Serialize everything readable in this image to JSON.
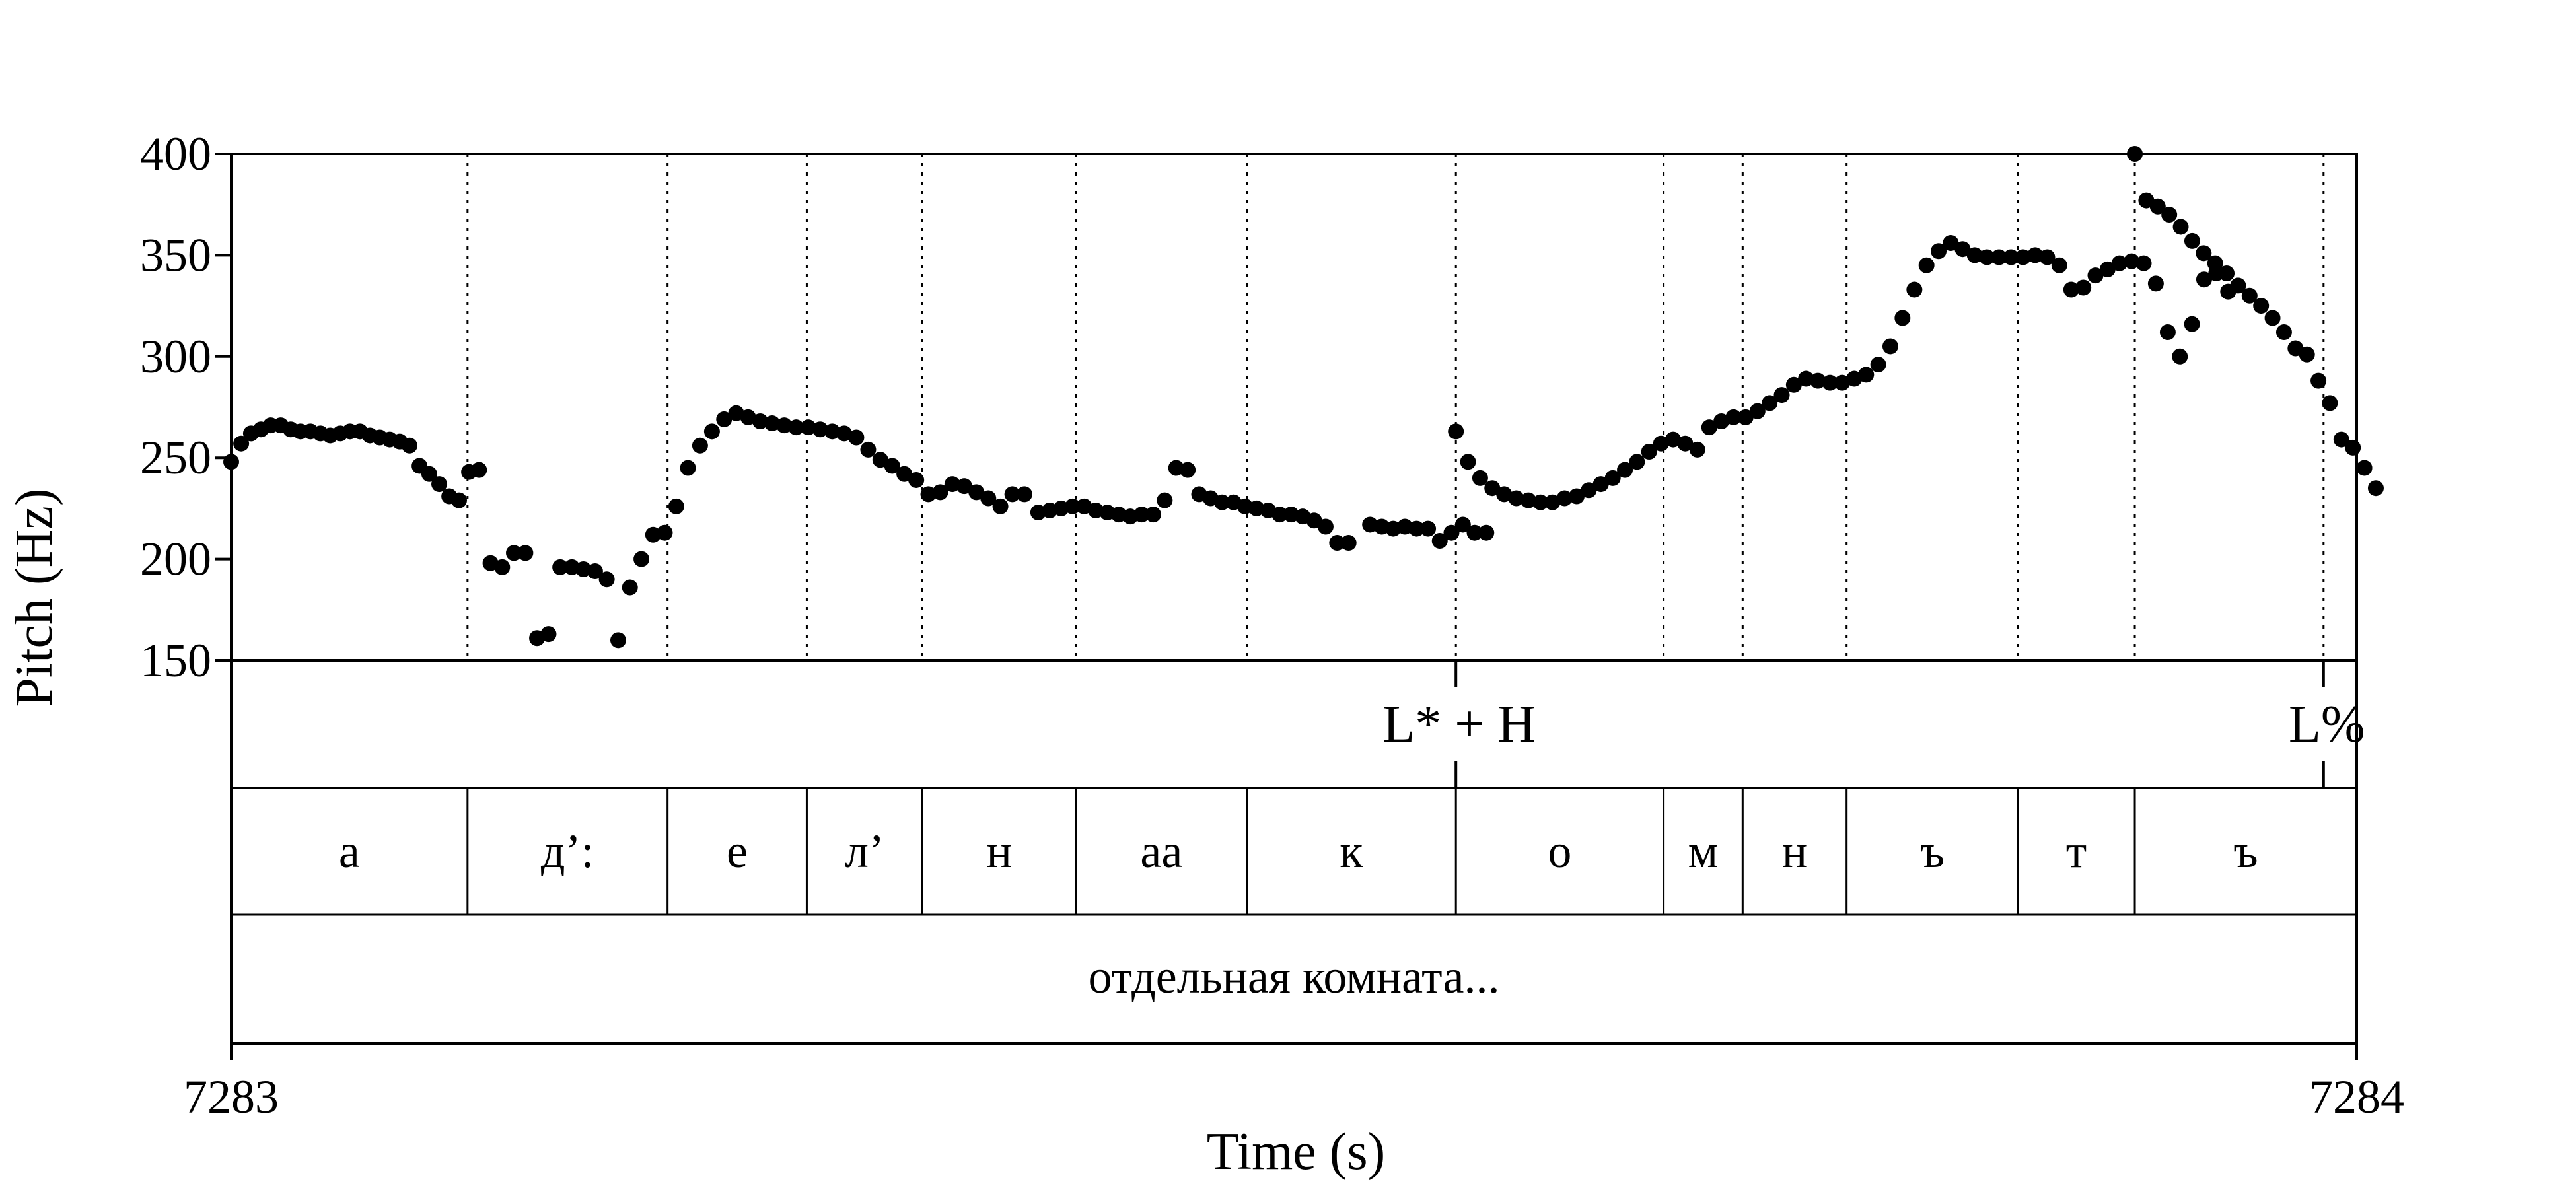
{
  "chart_data": {
    "type": "scatter",
    "title": "",
    "xlabel": "Time (s)",
    "ylabel": "Pitch (Hz)",
    "xlim": [
      7283,
      7284
    ],
    "ylim": [
      150,
      400
    ],
    "x_tick_labels": [
      "7283",
      "7284"
    ],
    "y_ticks": [
      150,
      200,
      250,
      300,
      350,
      400
    ],
    "y_tick_labels": [
      "150",
      "200",
      "250",
      "300",
      "350",
      "400"
    ],
    "grid": false,
    "segment_boundaries": [
      7283.1112,
      7283.2053,
      7283.2708,
      7283.3252,
      7283.3975,
      7283.4778,
      7283.5762,
      7283.6739,
      7283.7111,
      7283.76,
      7283.8406,
      7283.8956,
      7283.9844
    ],
    "tones": [
      {
        "label": "L* + H",
        "time": 7283.5762
      },
      {
        "label": "L%",
        "time": 7283.9844
      }
    ],
    "segments": [
      {
        "label": "а",
        "start": 7283.0,
        "end": 7283.1112
      },
      {
        "label": "д’:",
        "start": 7283.1112,
        "end": 7283.2053
      },
      {
        "label": "е",
        "start": 7283.2053,
        "end": 7283.2708
      },
      {
        "label": "л’",
        "start": 7283.2708,
        "end": 7283.3252
      },
      {
        "label": "н",
        "start": 7283.3252,
        "end": 7283.3975
      },
      {
        "label": "аа",
        "start": 7283.3975,
        "end": 7283.4778
      },
      {
        "label": "к",
        "start": 7283.4778,
        "end": 7283.5762
      },
      {
        "label": "о",
        "start": 7283.5762,
        "end": 7283.6739
      },
      {
        "label": "м",
        "start": 7283.6739,
        "end": 7283.7111
      },
      {
        "label": "н",
        "start": 7283.7111,
        "end": 7283.76
      },
      {
        "label": "ъ",
        "start": 7283.76,
        "end": 7283.8406
      },
      {
        "label": "т",
        "start": 7283.8406,
        "end": 7283.8956
      },
      {
        "label": "ъ",
        "start": 7283.8956,
        "end": 7284.0
      }
    ],
    "words": [
      {
        "label": "отдельная комната...",
        "start": 7283.0,
        "end": 7284.0
      }
    ],
    "points": [
      [
        7283.0,
        248
      ],
      [
        7283.0047,
        257
      ],
      [
        7283.0093,
        262
      ],
      [
        7283.014,
        264
      ],
      [
        7283.0186,
        266
      ],
      [
        7283.0233,
        266
      ],
      [
        7283.028,
        264
      ],
      [
        7283.0326,
        263
      ],
      [
        7283.0373,
        263
      ],
      [
        7283.042,
        262
      ],
      [
        7283.0466,
        261
      ],
      [
        7283.0513,
        262
      ],
      [
        7283.0559,
        263
      ],
      [
        7283.0606,
        263
      ],
      [
        7283.0653,
        261
      ],
      [
        7283.0699,
        260
      ],
      [
        7283.0746,
        259
      ],
      [
        7283.0793,
        258
      ],
      [
        7283.0839,
        256
      ],
      [
        7283.0886,
        246
      ],
      [
        7283.0932,
        242
      ],
      [
        7283.0979,
        237
      ],
      [
        7283.1026,
        231
      ],
      [
        7283.1072,
        229
      ],
      [
        7283.1119,
        243
      ],
      [
        7283.1166,
        244
      ],
      [
        7283.122,
        198
      ],
      [
        7283.1275,
        196
      ],
      [
        7283.133,
        203
      ],
      [
        7283.1384,
        203
      ],
      [
        7283.1439,
        161
      ],
      [
        7283.1493,
        163
      ],
      [
        7283.1548,
        196
      ],
      [
        7283.1603,
        196
      ],
      [
        7283.1657,
        195
      ],
      [
        7283.1712,
        194
      ],
      [
        7283.1767,
        190
      ],
      [
        7283.1821,
        160
      ],
      [
        7283.1876,
        186
      ],
      [
        7283.193,
        200
      ],
      [
        7283.1985,
        212
      ],
      [
        7283.204,
        213
      ],
      [
        7283.2094,
        226
      ],
      [
        7283.2149,
        245
      ],
      [
        7283.2206,
        256
      ],
      [
        7283.2262,
        263
      ],
      [
        7283.2319,
        269
      ],
      [
        7283.2376,
        272
      ],
      [
        7283.2432,
        270
      ],
      [
        7283.2489,
        268
      ],
      [
        7283.2545,
        267
      ],
      [
        7283.2602,
        266
      ],
      [
        7283.2658,
        265
      ],
      [
        7283.2715,
        265
      ],
      [
        7283.2771,
        264
      ],
      [
        7283.2828,
        263
      ],
      [
        7283.2884,
        262
      ],
      [
        7283.2941,
        260
      ],
      [
        7283.2997,
        254
      ],
      [
        7283.3054,
        249
      ],
      [
        7283.311,
        246
      ],
      [
        7283.3167,
        242
      ],
      [
        7283.3223,
        239
      ],
      [
        7283.328,
        232
      ],
      [
        7283.3336,
        233
      ],
      [
        7283.3393,
        237
      ],
      [
        7283.3449,
        236
      ],
      [
        7283.3506,
        233
      ],
      [
        7283.3562,
        230
      ],
      [
        7283.3619,
        226
      ],
      [
        7283.3675,
        232
      ],
      [
        7283.3732,
        232
      ],
      [
        7283.3797,
        223
      ],
      [
        7283.3851,
        224
      ],
      [
        7283.3905,
        225
      ],
      [
        7283.3959,
        226
      ],
      [
        7283.4013,
        226
      ],
      [
        7283.4068,
        224
      ],
      [
        7283.4122,
        223
      ],
      [
        7283.4176,
        222
      ],
      [
        7283.423,
        221
      ],
      [
        7283.4284,
        222
      ],
      [
        7283.4338,
        222
      ],
      [
        7283.4392,
        229
      ],
      [
        7283.4446,
        245
      ],
      [
        7283.45,
        244
      ],
      [
        7283.4554,
        232
      ],
      [
        7283.4608,
        230
      ],
      [
        7283.4662,
        228
      ],
      [
        7283.4716,
        228
      ],
      [
        7283.477,
        226
      ],
      [
        7283.4824,
        225
      ],
      [
        7283.4879,
        224
      ],
      [
        7283.4933,
        222
      ],
      [
        7283.4987,
        222
      ],
      [
        7283.5041,
        221
      ],
      [
        7283.5095,
        219
      ],
      [
        7283.5149,
        216
      ],
      [
        7283.5203,
        208
      ],
      [
        7283.5257,
        208
      ],
      [
        7283.5358,
        217
      ],
      [
        7283.5413,
        216
      ],
      [
        7283.5467,
        215
      ],
      [
        7283.5522,
        216
      ],
      [
        7283.5577,
        215
      ],
      [
        7283.5631,
        215
      ],
      [
        7283.5686,
        209
      ],
      [
        7283.5741,
        213
      ],
      [
        7283.5795,
        217
      ],
      [
        7283.585,
        213
      ],
      [
        7283.5905,
        213
      ],
      [
        7283.5762,
        263
      ],
      [
        7283.5819,
        248
      ],
      [
        7283.5876,
        240
      ],
      [
        7283.5933,
        235
      ],
      [
        7283.5989,
        232
      ],
      [
        7283.6046,
        230
      ],
      [
        7283.6103,
        229
      ],
      [
        7283.616,
        228
      ],
      [
        7283.6216,
        228
      ],
      [
        7283.6273,
        230
      ],
      [
        7283.633,
        231
      ],
      [
        7283.6387,
        234
      ],
      [
        7283.6444,
        237
      ],
      [
        7283.65,
        240
      ],
      [
        7283.6557,
        244
      ],
      [
        7283.6614,
        248
      ],
      [
        7283.6671,
        253
      ],
      [
        7283.6727,
        257
      ],
      [
        7283.6784,
        259
      ],
      [
        7283.6841,
        257
      ],
      [
        7283.6898,
        254
      ],
      [
        7283.6954,
        265
      ],
      [
        7283.7011,
        268
      ],
      [
        7283.7068,
        270
      ],
      [
        7283.7125,
        270
      ],
      [
        7283.7181,
        273
      ],
      [
        7283.7238,
        277
      ],
      [
        7283.7295,
        281
      ],
      [
        7283.7352,
        286
      ],
      [
        7283.7409,
        289
      ],
      [
        7283.7465,
        288
      ],
      [
        7283.7522,
        287
      ],
      [
        7283.7579,
        287
      ],
      [
        7283.7636,
        289
      ],
      [
        7283.7692,
        291
      ],
      [
        7283.7749,
        296
      ],
      [
        7283.7806,
        305
      ],
      [
        7283.7863,
        319
      ],
      [
        7283.7919,
        333
      ],
      [
        7283.7976,
        345
      ],
      [
        7283.8033,
        352
      ],
      [
        7283.809,
        356
      ],
      [
        7283.8146,
        353
      ],
      [
        7283.8203,
        350
      ],
      [
        7283.826,
        349
      ],
      [
        7283.8317,
        349
      ],
      [
        7283.8374,
        349
      ],
      [
        7283.843,
        349
      ],
      [
        7283.8487,
        350
      ],
      [
        7283.8544,
        349
      ],
      [
        7283.8601,
        345
      ],
      [
        7283.8657,
        333
      ],
      [
        7283.8714,
        334
      ],
      [
        7283.8771,
        340
      ],
      [
        7283.8828,
        343
      ],
      [
        7283.8884,
        346
      ],
      [
        7283.8941,
        347
      ],
      [
        7283.8998,
        346
      ],
      [
        7283.9055,
        336
      ],
      [
        7283.9111,
        312
      ],
      [
        7283.9168,
        300
      ],
      [
        7283.9225,
        316
      ],
      [
        7283.9282,
        338
      ],
      [
        7283.9339,
        341
      ],
      [
        7283.9395,
        332
      ],
      [
        7283.8956,
        400
      ],
      [
        7283.901,
        377
      ],
      [
        7283.9064,
        374
      ],
      [
        7283.9118,
        370
      ],
      [
        7283.9172,
        364
      ],
      [
        7283.9226,
        357
      ],
      [
        7283.928,
        351
      ],
      [
        7283.9334,
        346
      ],
      [
        7283.9388,
        341
      ],
      [
        7283.9442,
        335
      ],
      [
        7283.9496,
        330
      ],
      [
        7283.955,
        325
      ],
      [
        7283.9604,
        319
      ],
      [
        7283.9658,
        312
      ],
      [
        7283.9712,
        304
      ],
      [
        7283.9766,
        301
      ],
      [
        7283.982,
        288
      ],
      [
        7283.9874,
        277
      ],
      [
        7283.9928,
        259
      ],
      [
        7283.9982,
        255
      ],
      [
        7284.0036,
        245
      ],
      [
        7284.009,
        235
      ]
    ]
  }
}
